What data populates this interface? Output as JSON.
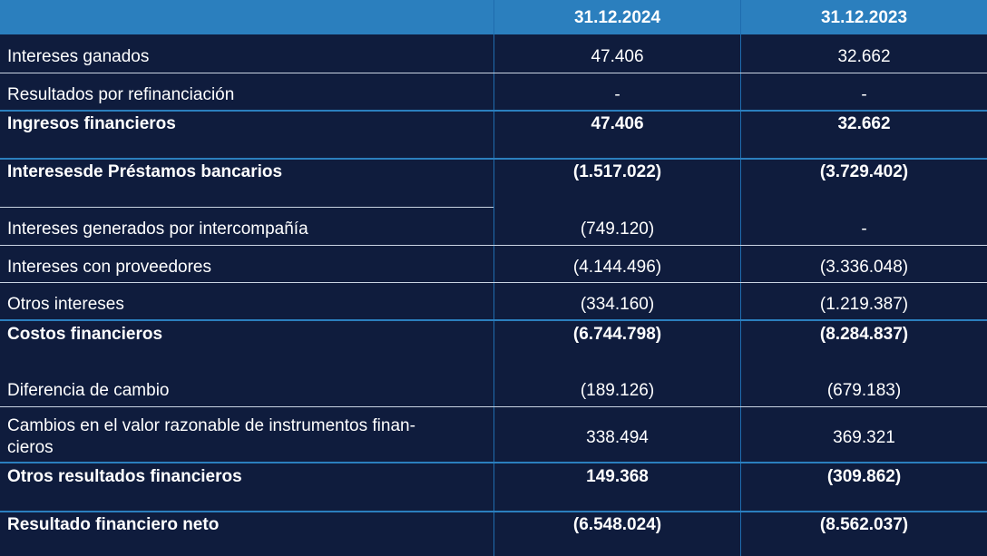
{
  "header": {
    "col1": "",
    "col2": "31.12.2024",
    "col3": "31.12.2023"
  },
  "rows": [
    {
      "label": "Intereses ganados",
      "v2024": "47.406",
      "v2023": "32.662",
      "bold": false
    },
    {
      "label": "Resultados por refinanciación",
      "v2024": "-",
      "v2023": "-",
      "bold": false
    },
    {
      "label": "Ingresos financieros",
      "v2024": "47.406",
      "v2023": "32.662",
      "bold": true
    },
    {
      "label": "Interesesde Préstamos bancarios",
      "v2024": "(1.517.022)",
      "v2023": "(3.729.402)",
      "bold": true
    },
    {
      "label": "Intereses generados por intercompañía",
      "v2024": "(749.120)",
      "v2023": "-",
      "bold": false
    },
    {
      "label": "Intereses con proveedores",
      "v2024": "(4.144.496)",
      "v2023": "(3.336.048)",
      "bold": false
    },
    {
      "label": "Otros intereses",
      "v2024": "(334.160)",
      "v2023": "(1.219.387)",
      "bold": false
    },
    {
      "label": "Costos financieros",
      "v2024": "(6.744.798)",
      "v2023": "(8.284.837)",
      "bold": true
    },
    {
      "label": "Diferencia de cambio",
      "v2024": "(189.126)",
      "v2023": "(679.183)",
      "bold": false
    },
    {
      "label_line1": "Cambios en el valor razonable de instrumentos finan-",
      "label_line2": "cieros",
      "v2024": "338.494",
      "v2023": "369.321",
      "bold": false
    },
    {
      "label": "Otros resultados financieros",
      "v2024": "149.368",
      "v2023": "(309.862)",
      "bold": true
    },
    {
      "label": "Resultado financiero neto",
      "v2024": "(6.548.024)",
      "v2023": "(8.562.037)",
      "bold": true
    }
  ]
}
